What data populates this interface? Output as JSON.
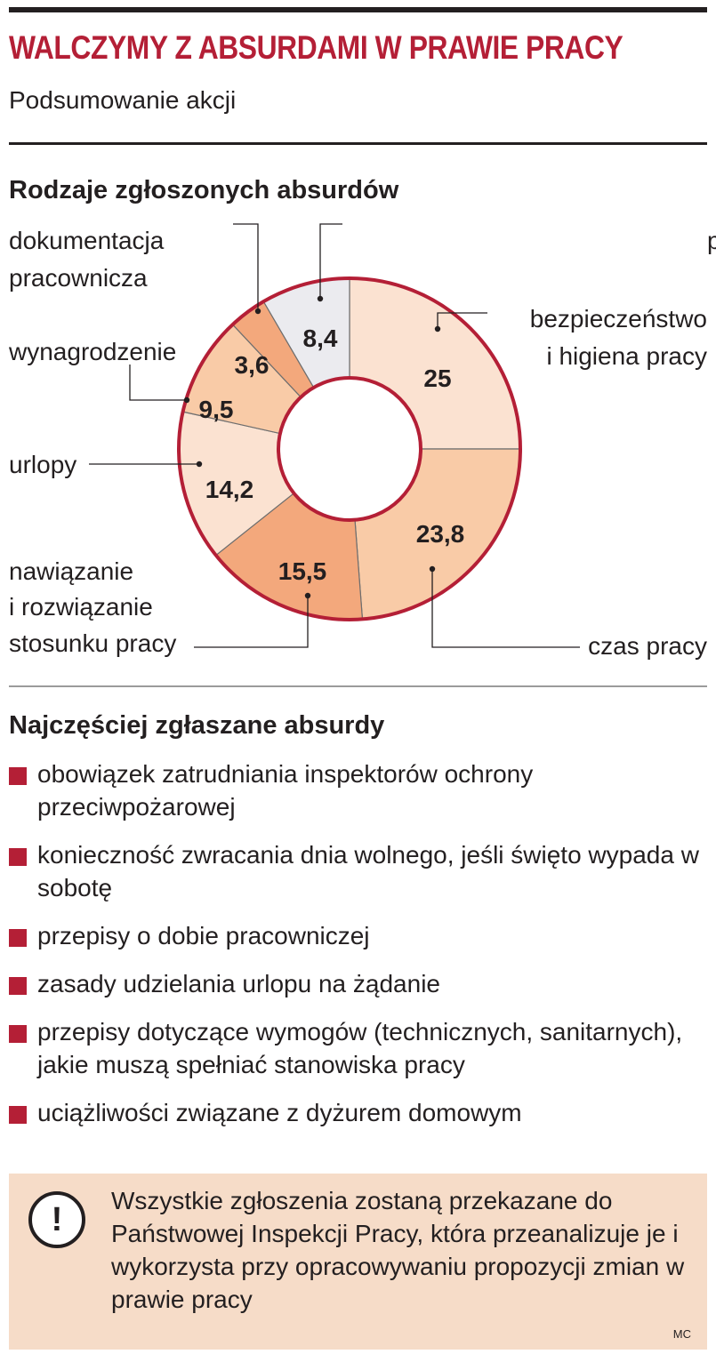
{
  "header": {
    "title": "WALCZYMY Z ABSURDAMI W PRAWIE PRACY",
    "subtitle": "Podsumowanie akcji"
  },
  "chart_section": {
    "title": "Rodzaje zgłoszonych absurdów"
  },
  "chart_data": {
    "type": "pie",
    "donut": true,
    "start": "top, clockwise",
    "slices": [
      {
        "label": "bezpieczeństwo i higiena pracy",
        "label_lines": [
          "bezpieczeństwo",
          "i higiena pracy"
        ],
        "value": 25,
        "value_label": "25",
        "color": "#fbe2d1"
      },
      {
        "label": "czas pracy",
        "label_lines": [
          "czas pracy"
        ],
        "value": 23.8,
        "value_label": "23,8",
        "color": "#f9cba7"
      },
      {
        "label": "nawiązanie i rozwiązanie stosunku pracy",
        "label_lines": [
          "nawiązanie",
          "i rozwiązanie",
          "stosunku pracy"
        ],
        "value": 15.5,
        "value_label": "15,5",
        "color": "#f3a87c"
      },
      {
        "label": "urlopy",
        "label_lines": [
          "urlopy"
        ],
        "value": 14.2,
        "value_label": "14,2",
        "color": "#fbe2d1"
      },
      {
        "label": "wynagrodzenie",
        "label_lines": [
          "wynagrodzenie"
        ],
        "value": 9.5,
        "value_label": "9,5",
        "color": "#f9cba7"
      },
      {
        "label": "dokumentacja pracownicza",
        "label_lines": [
          "dokumentacja",
          "pracownicza"
        ],
        "value": 3.6,
        "value_label": "3,6",
        "color": "#f3a87c"
      },
      {
        "label": "pozostałe",
        "label_lines": [
          "pozostałe"
        ],
        "value": 8.4,
        "value_label": "8,4",
        "color": "#ebebef"
      }
    ],
    "outline_color": "#b41f36"
  },
  "list_section": {
    "title": "Najczęściej zgłaszane absurdy",
    "items": [
      "obowiązek zatrudniania inspektorów ochrony przeciwpożarowej",
      "konieczność zwracania dnia wolnego, jeśli święto wypada w sobotę",
      "przepisy o dobie pracowniczej",
      "zasady udzielania urlopu na żądanie",
      "przepisy dotyczące wymogów (technicznych, sanitarnych), jakie muszą spełniać stanowiska pracy",
      "uciążliwości związane z dyżurem domowym"
    ]
  },
  "note": {
    "icon": "exclamation-icon",
    "text": "Wszystkie zgłoszenia zostaną przekazane do Państwowej Inspekcji Pracy, która przeanalizuje je i wykorzysta przy opracowywaniu propozycji zmian w prawie pracy",
    "signature": "MC"
  },
  "colors": {
    "accent": "#b41f36",
    "note_bg": "#f6dcc8"
  }
}
